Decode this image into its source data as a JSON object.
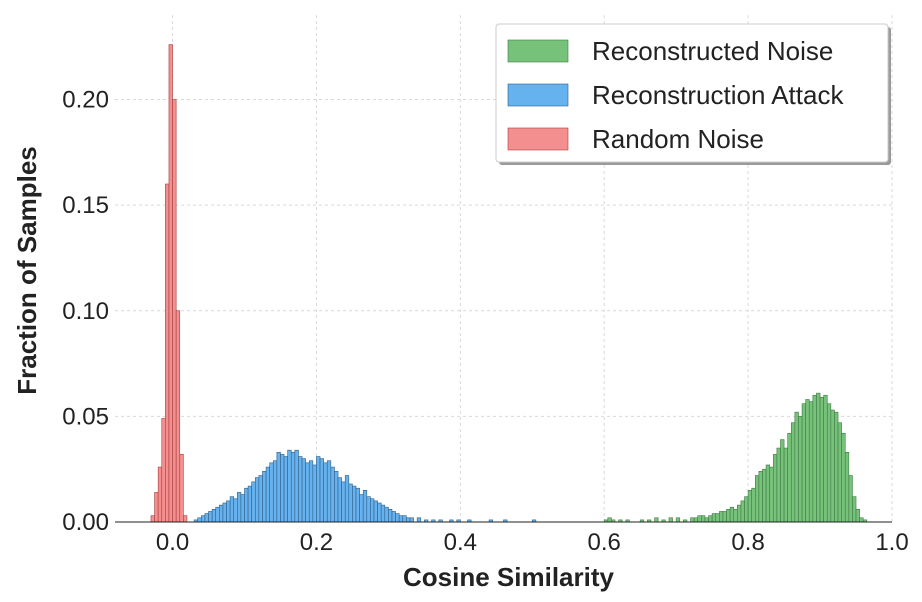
{
  "chart_data": {
    "type": "bar",
    "title": "",
    "xlabel": "Cosine Similarity",
    "ylabel": "Fraction of Samples",
    "xlim": [
      -0.08,
      1.0
    ],
    "ylim": [
      0,
      0.24
    ],
    "xticks": [
      0.0,
      0.2,
      0.4,
      0.6,
      0.8,
      1.0
    ],
    "xtick_labels": [
      "0.0",
      "0.2",
      "0.4",
      "0.6",
      "0.8",
      "1.0"
    ],
    "yticks": [
      0.0,
      0.05,
      0.1,
      0.15,
      0.2
    ],
    "ytick_labels": [
      "0.00",
      "0.05",
      "0.10",
      "0.15",
      "0.20"
    ],
    "grid": true,
    "legend_position": "top-right",
    "series": [
      {
        "name": "Reconstructed Noise",
        "color": "#77c27b",
        "edge_color": "#3f7a43",
        "bin_width": 0.005,
        "bins": [
          [
            0.6,
            0.001
          ],
          [
            0.605,
            0.002
          ],
          [
            0.61,
            0.001
          ],
          [
            0.62,
            0.001
          ],
          [
            0.63,
            0.001
          ],
          [
            0.65,
            0.001
          ],
          [
            0.66,
            0.001
          ],
          [
            0.67,
            0.002
          ],
          [
            0.68,
            0.001
          ],
          [
            0.69,
            0.002
          ],
          [
            0.7,
            0.002
          ],
          [
            0.71,
            0.001
          ],
          [
            0.72,
            0.002
          ],
          [
            0.725,
            0.002
          ],
          [
            0.73,
            0.003
          ],
          [
            0.735,
            0.003
          ],
          [
            0.74,
            0.002
          ],
          [
            0.745,
            0.003
          ],
          [
            0.75,
            0.004
          ],
          [
            0.755,
            0.004
          ],
          [
            0.76,
            0.005
          ],
          [
            0.765,
            0.005
          ],
          [
            0.77,
            0.006
          ],
          [
            0.775,
            0.007
          ],
          [
            0.78,
            0.006
          ],
          [
            0.785,
            0.008
          ],
          [
            0.79,
            0.01
          ],
          [
            0.795,
            0.012
          ],
          [
            0.8,
            0.015
          ],
          [
            0.805,
            0.016
          ],
          [
            0.81,
            0.022
          ],
          [
            0.815,
            0.024
          ],
          [
            0.82,
            0.025
          ],
          [
            0.825,
            0.027
          ],
          [
            0.83,
            0.026
          ],
          [
            0.835,
            0.032
          ],
          [
            0.84,
            0.035
          ],
          [
            0.845,
            0.039
          ],
          [
            0.85,
            0.035
          ],
          [
            0.855,
            0.042
          ],
          [
            0.86,
            0.047
          ],
          [
            0.865,
            0.052
          ],
          [
            0.87,
            0.05
          ],
          [
            0.875,
            0.056
          ],
          [
            0.88,
            0.058
          ],
          [
            0.885,
            0.057
          ],
          [
            0.89,
            0.06
          ],
          [
            0.895,
            0.061
          ],
          [
            0.9,
            0.059
          ],
          [
            0.905,
            0.06
          ],
          [
            0.91,
            0.056
          ],
          [
            0.915,
            0.053
          ],
          [
            0.92,
            0.052
          ],
          [
            0.925,
            0.047
          ],
          [
            0.93,
            0.042
          ],
          [
            0.935,
            0.033
          ],
          [
            0.94,
            0.022
          ],
          [
            0.945,
            0.012
          ],
          [
            0.95,
            0.006
          ],
          [
            0.955,
            0.002
          ],
          [
            0.96,
            0.001
          ]
        ]
      },
      {
        "name": "Reconstruction Attack",
        "color": "#66b2ee",
        "edge_color": "#2f5f88",
        "bin_width": 0.005,
        "bins": [
          [
            0.03,
            0.001
          ],
          [
            0.035,
            0.002
          ],
          [
            0.04,
            0.003
          ],
          [
            0.045,
            0.004
          ],
          [
            0.05,
            0.005
          ],
          [
            0.055,
            0.006
          ],
          [
            0.06,
            0.007
          ],
          [
            0.065,
            0.008
          ],
          [
            0.07,
            0.009
          ],
          [
            0.075,
            0.01
          ],
          [
            0.08,
            0.012
          ],
          [
            0.085,
            0.011
          ],
          [
            0.09,
            0.014
          ],
          [
            0.095,
            0.013
          ],
          [
            0.1,
            0.016
          ],
          [
            0.105,
            0.017
          ],
          [
            0.11,
            0.019
          ],
          [
            0.115,
            0.021
          ],
          [
            0.12,
            0.022
          ],
          [
            0.125,
            0.024
          ],
          [
            0.13,
            0.026
          ],
          [
            0.135,
            0.028
          ],
          [
            0.14,
            0.029
          ],
          [
            0.145,
            0.033
          ],
          [
            0.15,
            0.032
          ],
          [
            0.155,
            0.031
          ],
          [
            0.16,
            0.034
          ],
          [
            0.165,
            0.033
          ],
          [
            0.17,
            0.034
          ],
          [
            0.175,
            0.031
          ],
          [
            0.18,
            0.03
          ],
          [
            0.185,
            0.028
          ],
          [
            0.19,
            0.029
          ],
          [
            0.195,
            0.027
          ],
          [
            0.2,
            0.031
          ],
          [
            0.205,
            0.03
          ],
          [
            0.21,
            0.028
          ],
          [
            0.215,
            0.029
          ],
          [
            0.22,
            0.026
          ],
          [
            0.225,
            0.024
          ],
          [
            0.23,
            0.021
          ],
          [
            0.235,
            0.019
          ],
          [
            0.24,
            0.022
          ],
          [
            0.245,
            0.018
          ],
          [
            0.25,
            0.017
          ],
          [
            0.255,
            0.016
          ],
          [
            0.26,
            0.013
          ],
          [
            0.265,
            0.015
          ],
          [
            0.27,
            0.012
          ],
          [
            0.275,
            0.011
          ],
          [
            0.28,
            0.01
          ],
          [
            0.285,
            0.009
          ],
          [
            0.29,
            0.008
          ],
          [
            0.295,
            0.007
          ],
          [
            0.3,
            0.006
          ],
          [
            0.305,
            0.005
          ],
          [
            0.31,
            0.004
          ],
          [
            0.315,
            0.003
          ],
          [
            0.32,
            0.003
          ],
          [
            0.325,
            0.002
          ],
          [
            0.33,
            0.002
          ],
          [
            0.34,
            0.002
          ],
          [
            0.35,
            0.001
          ],
          [
            0.36,
            0.001
          ],
          [
            0.37,
            0.001
          ],
          [
            0.385,
            0.001
          ],
          [
            0.395,
            0.001
          ],
          [
            0.41,
            0.001
          ],
          [
            0.44,
            0.001
          ],
          [
            0.46,
            0.001
          ],
          [
            0.5,
            0.001
          ]
        ]
      },
      {
        "name": "Random Noise",
        "color": "#f48f8f",
        "edge_color": "#a83e3e",
        "bin_width": 0.005,
        "bins": [
          [
            -0.03,
            0.003
          ],
          [
            -0.025,
            0.014
          ],
          [
            -0.02,
            0.026
          ],
          [
            -0.015,
            0.049
          ],
          [
            -0.01,
            0.16
          ],
          [
            -0.005,
            0.226
          ],
          [
            0.0,
            0.2
          ],
          [
            0.005,
            0.1
          ],
          [
            0.01,
            0.032
          ],
          [
            0.015,
            0.003
          ]
        ]
      }
    ]
  }
}
